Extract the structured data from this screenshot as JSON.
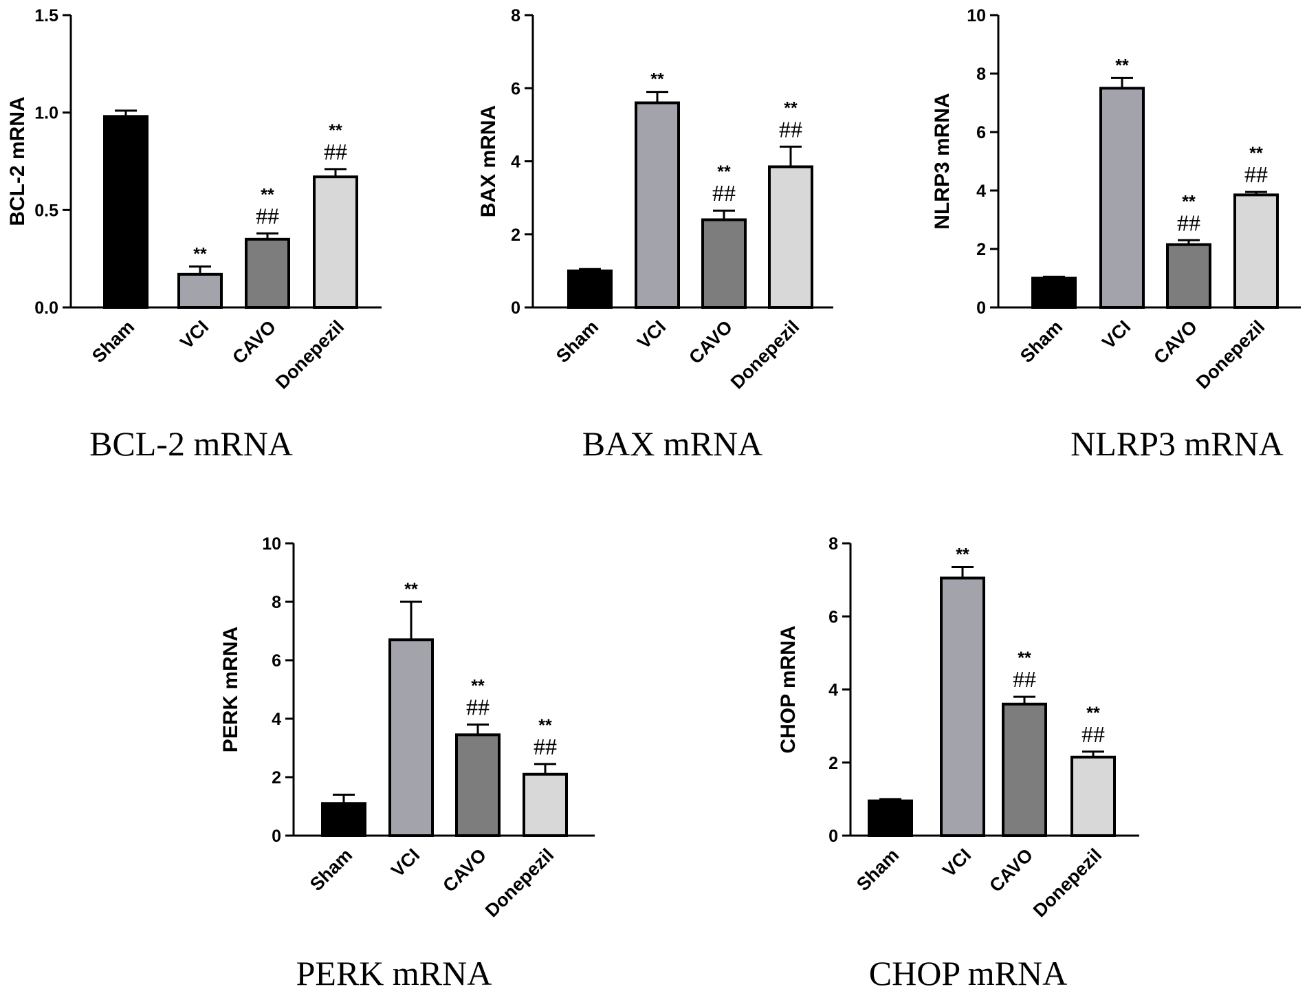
{
  "chart_data": [
    {
      "type": "bar",
      "caption": "BCL-2  mRNA",
      "ylabel": "BCL-2 mRNA",
      "categories": [
        "Sham",
        "VCI",
        "CAVO",
        "Donepezil"
      ],
      "values": [
        0.98,
        0.17,
        0.35,
        0.67
      ],
      "errors": [
        0.03,
        0.04,
        0.03,
        0.04
      ],
      "fills": [
        "#000000",
        "#a3a3ab",
        "#7d7d7d",
        "#d8d8d8"
      ],
      "ylim": [
        0,
        1.5
      ],
      "yticks": [
        0,
        0.5,
        1.0,
        1.5
      ],
      "yticklabels": [
        "0.0",
        "0.5",
        "1.0",
        "1.5"
      ],
      "stars": [
        "",
        "**",
        "**",
        "**"
      ],
      "hashes": [
        "",
        "",
        "##",
        "##"
      ]
    },
    {
      "type": "bar",
      "caption": "BAX  mRNA",
      "ylabel": "BAX mRNA",
      "categories": [
        "Sham",
        "VCI",
        "CAVO",
        "Donepezil"
      ],
      "values": [
        1.0,
        5.6,
        2.4,
        3.85
      ],
      "errors": [
        0.05,
        0.3,
        0.25,
        0.55
      ],
      "fills": [
        "#000000",
        "#a3a3ab",
        "#7d7d7d",
        "#d8d8d8"
      ],
      "ylim": [
        0,
        8
      ],
      "yticks": [
        0,
        2,
        4,
        6,
        8
      ],
      "yticklabels": [
        "0",
        "2",
        "4",
        "6",
        "8"
      ],
      "stars": [
        "",
        "**",
        "**",
        "**"
      ],
      "hashes": [
        "",
        "",
        "##",
        "##"
      ]
    },
    {
      "type": "bar",
      "caption": "NLRP3  mRNA",
      "ylabel": "NLRP3 mRNA",
      "categories": [
        "Sham",
        "VCI",
        "CAVO",
        "Donepezil"
      ],
      "values": [
        1.0,
        7.5,
        2.15,
        3.85
      ],
      "errors": [
        0.05,
        0.35,
        0.15,
        0.1
      ],
      "fills": [
        "#000000",
        "#a3a3ab",
        "#7d7d7d",
        "#d8d8d8"
      ],
      "ylim": [
        0,
        10
      ],
      "yticks": [
        0,
        2,
        4,
        6,
        8,
        10
      ],
      "yticklabels": [
        "0",
        "2",
        "4",
        "6",
        "8",
        "10"
      ],
      "stars": [
        "",
        "**",
        "**",
        "**"
      ],
      "hashes": [
        "",
        "",
        "##",
        "##"
      ]
    },
    {
      "type": "bar",
      "caption": "PERK  mRNA",
      "ylabel": "PERK mRNA",
      "categories": [
        "Sham",
        "VCI",
        "CAVO",
        "Donepezil"
      ],
      "values": [
        1.1,
        6.7,
        3.45,
        2.1
      ],
      "errors": [
        0.3,
        1.3,
        0.35,
        0.35
      ],
      "fills": [
        "#000000",
        "#a3a3ab",
        "#7d7d7d",
        "#d8d8d8"
      ],
      "ylim": [
        0,
        10
      ],
      "yticks": [
        0,
        2,
        4,
        6,
        8,
        10
      ],
      "yticklabels": [
        "0",
        "2",
        "4",
        "6",
        "8",
        "10"
      ],
      "stars": [
        "",
        "**",
        "**",
        "**"
      ],
      "hashes": [
        "",
        "",
        "##",
        "##"
      ]
    },
    {
      "type": "bar",
      "caption": "CHOP  mRNA",
      "ylabel": "CHOP mRNA",
      "categories": [
        "Sham",
        "VCI",
        "CAVO",
        "Donepezil"
      ],
      "values": [
        0.95,
        7.05,
        3.6,
        2.15
      ],
      "errors": [
        0.05,
        0.3,
        0.2,
        0.15
      ],
      "fills": [
        "#000000",
        "#a3a3ab",
        "#7d7d7d",
        "#d8d8d8"
      ],
      "ylim": [
        0,
        8
      ],
      "yticks": [
        0,
        2,
        4,
        6,
        8
      ],
      "yticklabels": [
        "0",
        "2",
        "4",
        "6",
        "8"
      ],
      "stars": [
        "",
        "**",
        "**",
        "**"
      ],
      "hashes": [
        "",
        "",
        "##",
        "##"
      ]
    }
  ]
}
